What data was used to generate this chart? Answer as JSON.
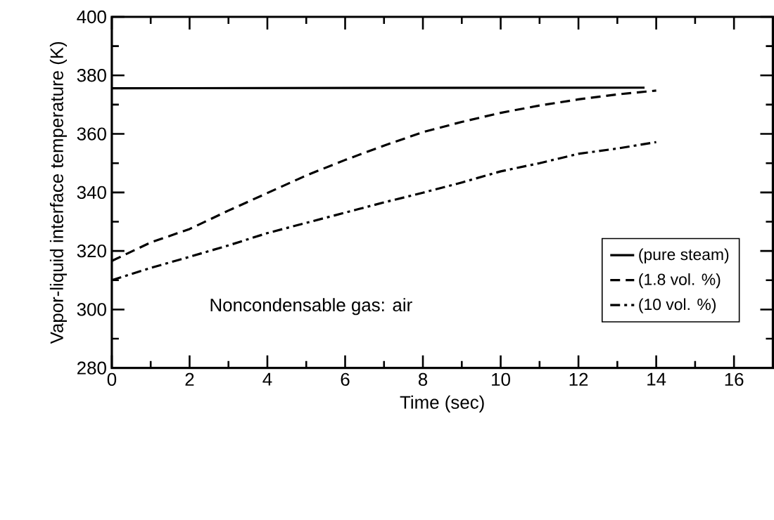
{
  "chart_data": {
    "type": "line",
    "xlabel": "Time (sec)",
    "ylabel": "Vapor-liquid interface temperature (K)",
    "annotations": [
      "Noncondensable gas: air"
    ],
    "xlim": [
      0,
      17
    ],
    "ylim": [
      280,
      400
    ],
    "xticks": [
      0,
      2,
      4,
      6,
      8,
      10,
      12,
      14,
      16
    ],
    "yticks": [
      280,
      300,
      320,
      340,
      360,
      380,
      400
    ],
    "legend": "bottom right",
    "grid": false,
    "marker": "none",
    "series": [
      {
        "name": "(pure steam)",
        "color": "#000000",
        "line_style": "solid",
        "x": [
          0,
          13.7
        ],
        "values": [
          375.6,
          375.8
        ]
      },
      {
        "name": "(1.8 vol. %)",
        "color": "#000000",
        "line_style": "dashed",
        "x": [
          0,
          1,
          2,
          3,
          4,
          5,
          6,
          7,
          8,
          9,
          10,
          11,
          12,
          13,
          14
        ],
        "values": [
          316.6,
          322.9,
          327.5,
          333.8,
          339.8,
          345.8,
          351.1,
          356,
          360.6,
          364.1,
          367.2,
          369.7,
          371.8,
          373.5,
          374.8
        ]
      },
      {
        "name": "(10 vol. %)",
        "color": "#000000",
        "line_style": "dashdot",
        "x": [
          0,
          1,
          2,
          3,
          4,
          5,
          6,
          7,
          8,
          9,
          10,
          11,
          12,
          13,
          14
        ],
        "values": [
          310,
          314.2,
          318,
          321.9,
          326.1,
          329.6,
          333.1,
          336.6,
          339.9,
          343.4,
          347.2,
          350,
          353.2,
          355,
          357.2
        ]
      }
    ]
  }
}
